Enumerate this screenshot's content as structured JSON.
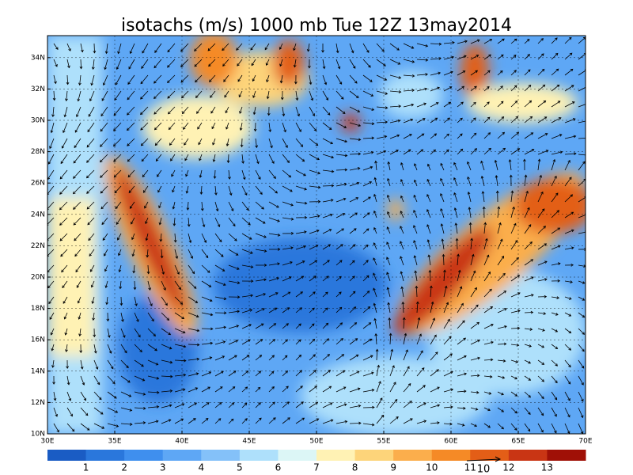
{
  "title": "isotachs (m/s) 1000 mb Tue 12Z 13may2014",
  "axes": {
    "lat_labels": [
      "10N",
      "12N",
      "14N",
      "16N",
      "18N",
      "20N",
      "22N",
      "24N",
      "26N",
      "28N",
      "30N",
      "32N",
      "34N"
    ],
    "lon_labels": [
      "30E",
      "35E",
      "40E",
      "45E",
      "50E",
      "55E",
      "60E",
      "65E",
      "70E"
    ]
  },
  "colorbar": {
    "labels": [
      "1",
      "2",
      "3",
      "4",
      "5",
      "6",
      "7",
      "8",
      "9",
      "10",
      "11",
      "12",
      "13"
    ],
    "colors": [
      "#1a5cc4",
      "#2a77dc",
      "#3f8fee",
      "#5ea7f5",
      "#84c1f9",
      "#aee0fb",
      "#dcf6f6",
      "#fff2b4",
      "#fdd47a",
      "#fbae4c",
      "#f58a26",
      "#e35e17",
      "#c93514",
      "#a01006"
    ]
  },
  "vector_reference": "10"
}
